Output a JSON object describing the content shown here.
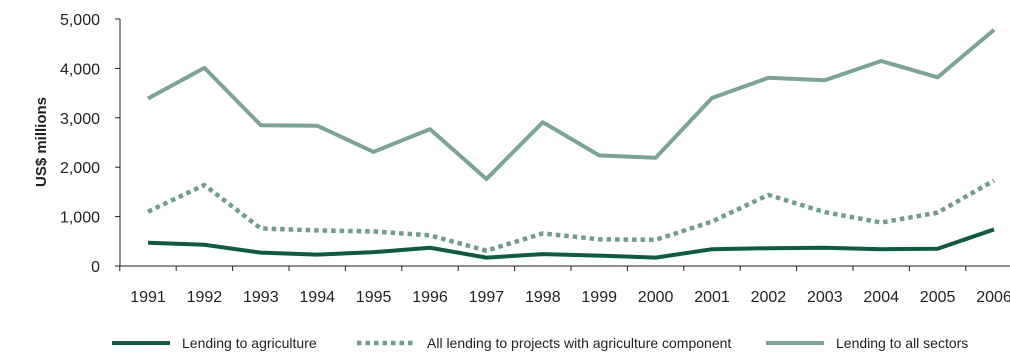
{
  "chart_data": {
    "type": "line",
    "title": "",
    "xlabel": "",
    "ylabel": "US$ millions",
    "categories": [
      "1991",
      "1992",
      "1993",
      "1994",
      "1995",
      "1996",
      "1997",
      "1998",
      "1999",
      "2000",
      "2001",
      "2002",
      "2003",
      "2004",
      "2005",
      "2006"
    ],
    "ylim": [
      0,
      5000
    ],
    "yticks": [
      "0",
      "1,000",
      "2,000",
      "3,000",
      "4,000",
      "5,000"
    ],
    "yticks_values": [
      0,
      1000,
      2000,
      3000,
      4000,
      5000
    ],
    "grid": false,
    "legend_position": "bottom",
    "series": [
      {
        "name": "Lending to agriculture",
        "color": "#0b5c40",
        "style": "solid",
        "values": [
          470,
          430,
          270,
          230,
          280,
          370,
          170,
          240,
          210,
          170,
          340,
          360,
          370,
          340,
          350,
          740
        ]
      },
      {
        "name": "All lending to projects with agriculture component",
        "color": "#6f9d8a",
        "style": "dotted",
        "values": [
          1100,
          1640,
          760,
          720,
          700,
          620,
          310,
          660,
          540,
          530,
          900,
          1440,
          1090,
          880,
          1080,
          1730
        ]
      },
      {
        "name": "Lending to all sectors",
        "color": "#7aa595",
        "style": "solid",
        "values": [
          3390,
          4010,
          2850,
          2840,
          2310,
          2770,
          1760,
          2910,
          2240,
          2190,
          3400,
          3810,
          3760,
          4150,
          3820,
          4780
        ]
      }
    ]
  }
}
